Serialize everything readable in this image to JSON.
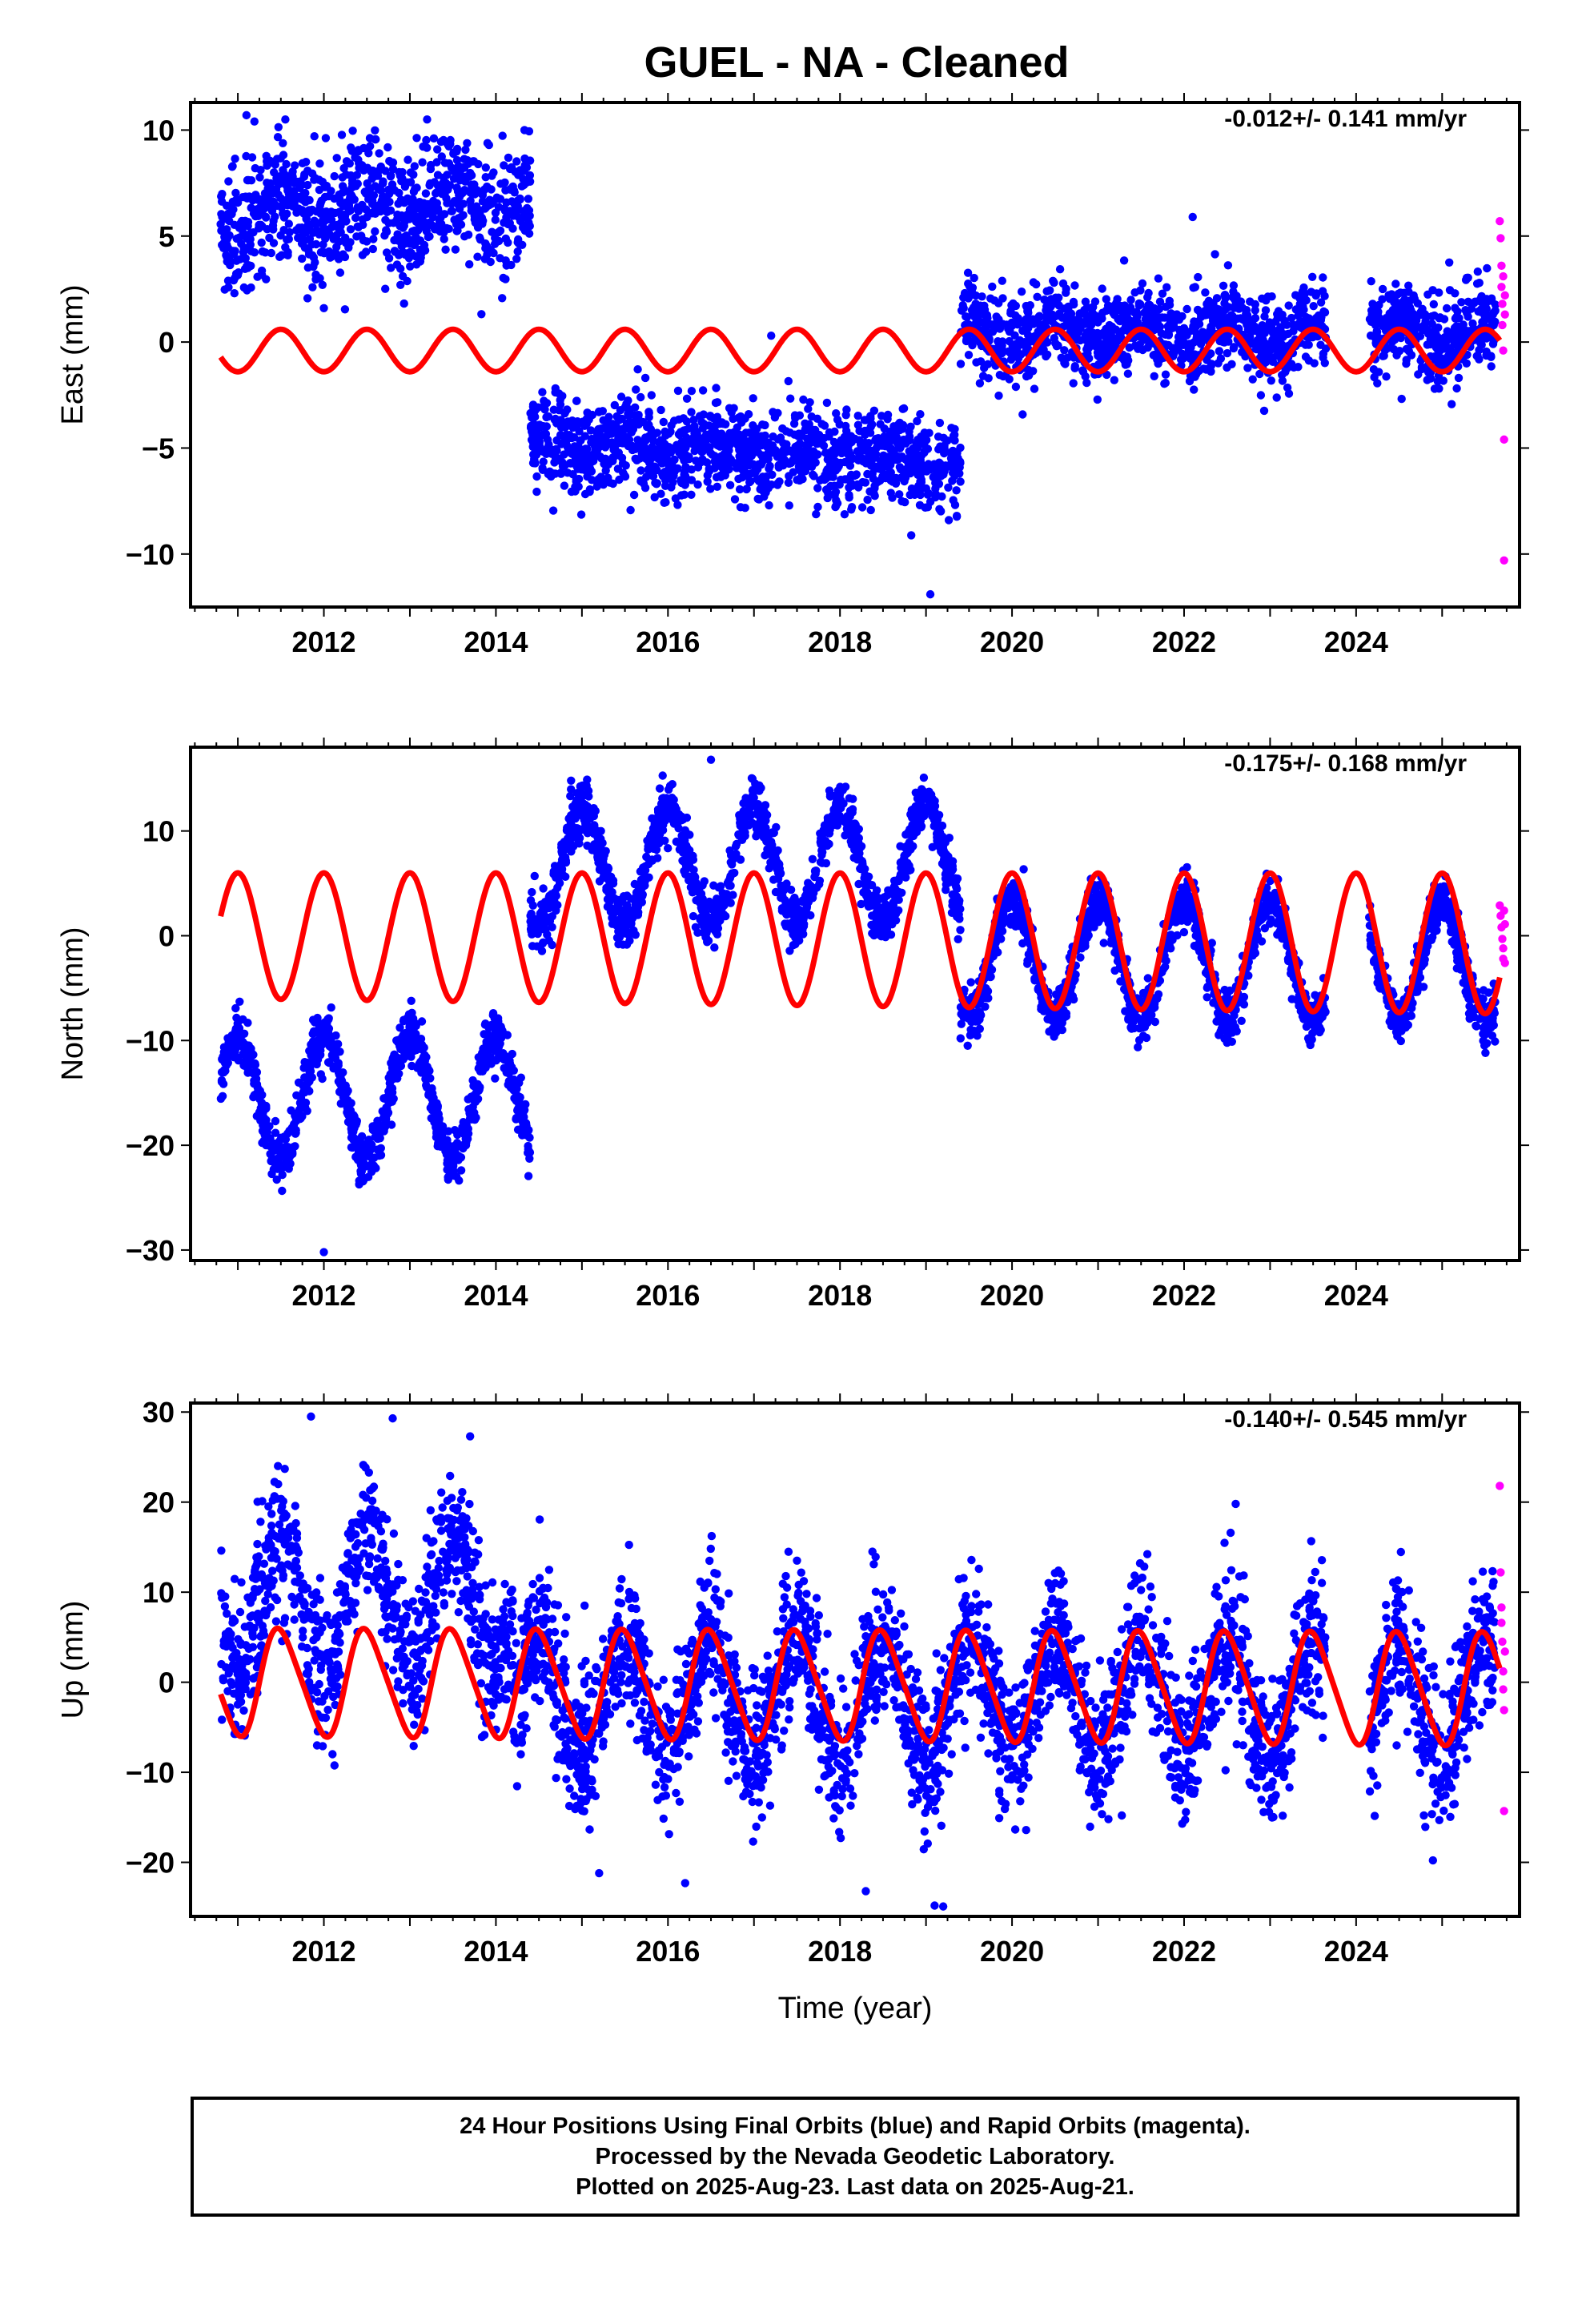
{
  "title": "GUEL  - NA - Cleaned",
  "colors": {
    "final": "#0000ff",
    "rapid": "#ff00ff",
    "model": "#ff0000",
    "axes": "#000000"
  },
  "x_axis_label": "Time (year)",
  "footer": {
    "line1": "24 Hour Positions Using Final Orbits (blue) and Rapid Orbits (magenta).",
    "line2": "Processed by the Nevada Geodetic Laboratory.",
    "line3": "Plotted on 2025-Aug-23. Last data on 2025-Aug-21."
  },
  "chart_data": [
    {
      "type": "scatter",
      "component": "East",
      "ylabel": "East (mm)",
      "rate": "-0.012+/- 0.141 mm/yr",
      "xlim": [
        2010.45,
        2025.9
      ],
      "ylim": [
        -12.5,
        11.3
      ],
      "x_ticks": [
        2012,
        2014,
        2016,
        2018,
        2020,
        2022,
        2024
      ],
      "y_ticks": [
        -10,
        -5,
        0,
        5,
        10
      ],
      "series": [
        {
          "role": "final orbits",
          "color": "blue",
          "segments": [
            {
              "x": [
                2010.8,
                2014.4
              ],
              "mean": 6.0,
              "scatter": 1.4,
              "annual_amp": 0.8,
              "trend": 0.2
            },
            {
              "x": [
                2014.4,
                2019.4
              ],
              "mean": -4.7,
              "scatter": 1.1,
              "annual_amp": 0.3,
              "trend": -0.2
            },
            {
              "x": [
                2019.4,
                2025.62
              ],
              "mean": 0.4,
              "scatter": 1.0,
              "annual_amp": 0.5,
              "trend": 0.0
            }
          ],
          "gaps": [
            [
              2023.65,
              2024.15
            ]
          ],
          "outliers": [
            [
              2011.1,
              10.7
            ],
            [
              2012.0,
              1.6
            ],
            [
              2019.05,
              -11.9
            ],
            [
              2022.1,
              5.9
            ],
            [
              2013.2,
              10.5
            ],
            [
              2017.2,
              0.3
            ]
          ]
        },
        {
          "role": "rapid orbits",
          "color": "magenta",
          "points": [
            [
              2025.67,
              5.7
            ],
            [
              2025.68,
              4.9
            ],
            [
              2025.69,
              3.6
            ],
            [
              2025.69,
              2.6
            ],
            [
              2025.7,
              1.8
            ],
            [
              2025.7,
              0.8
            ],
            [
              2025.71,
              -0.4
            ],
            [
              2025.71,
              3.1
            ],
            [
              2025.72,
              -4.6
            ],
            [
              2025.72,
              -10.3
            ],
            [
              2025.73,
              1.3
            ],
            [
              2025.73,
              2.2
            ]
          ]
        },
        {
          "role": "model",
          "color": "red",
          "kind": "line",
          "x": [
            2010.8,
            2025.67
          ],
          "offset": -0.4,
          "annual_amp": 1.0,
          "phase": 0.25,
          "semiannual_amp": 0.0
        }
      ]
    },
    {
      "type": "scatter",
      "component": "North",
      "ylabel": "North (mm)",
      "rate": "-0.175+/- 0.168 mm/yr",
      "xlim": [
        2010.45,
        2025.9
      ],
      "ylim": [
        -31,
        18
      ],
      "x_ticks": [
        2012,
        2014,
        2016,
        2018,
        2020,
        2022,
        2024
      ],
      "y_ticks": [
        -30,
        -20,
        -10,
        0,
        10
      ],
      "series": [
        {
          "role": "final orbits",
          "color": "blue",
          "segments": [
            {
              "x": [
                2010.8,
                2014.4
              ],
              "mean": -15.5,
              "scatter": 1.3,
              "annual_amp": 6.0,
              "trend": 0.0
            },
            {
              "x": [
                2014.4,
                2019.4
              ],
              "mean": 6.5,
              "scatter": 1.3,
              "annual_amp": 5.5,
              "trend": 0.1
            },
            {
              "x": [
                2019.4,
                2025.62
              ],
              "mean": -2.0,
              "scatter": 1.2,
              "annual_amp": 5.5,
              "trend": -0.1
            }
          ],
          "gaps": [
            [
              2023.65,
              2024.15
            ]
          ],
          "outliers": [
            [
              2012.0,
              -30.2
            ],
            [
              2016.5,
              16.8
            ],
            [
              2014.45,
              5.7
            ]
          ]
        },
        {
          "role": "rapid orbits",
          "color": "magenta",
          "points": [
            [
              2025.67,
              2.9
            ],
            [
              2025.68,
              1.9
            ],
            [
              2025.69,
              0.8
            ],
            [
              2025.7,
              -0.3
            ],
            [
              2025.71,
              -1.2
            ],
            [
              2025.71,
              -2.2
            ],
            [
              2025.72,
              2.4
            ],
            [
              2025.73,
              1.1
            ],
            [
              2025.73,
              -2.6
            ]
          ]
        },
        {
          "role": "model",
          "color": "red",
          "kind": "line",
          "x": [
            2010.8,
            2025.67
          ],
          "offset": 0.0,
          "annual_amp": 6.0,
          "phase": 0.75,
          "semiannual_amp": 0.0,
          "amp_growth": 0.12,
          "baseline_drift": -0.05
        }
      ]
    },
    {
      "type": "scatter",
      "component": "Up",
      "ylabel": "Up (mm)",
      "rate": "-0.140+/- 0.545 mm/yr",
      "xlim": [
        2010.45,
        2025.9
      ],
      "ylim": [
        -26,
        31
      ],
      "x_ticks": [
        2012,
        2014,
        2016,
        2018,
        2020,
        2022,
        2024
      ],
      "y_ticks": [
        -20,
        -10,
        0,
        10,
        20,
        30
      ],
      "series": [
        {
          "role": "final orbits",
          "color": "blue",
          "segments": [
            {
              "x": [
                2010.8,
                2014.2
              ],
              "mean": 9.0,
              "scatter": 4.0,
              "annual_amp": 7.0,
              "trend": 0.0
            },
            {
              "x": [
                2014.2,
                2025.62
              ],
              "mean": -1.5,
              "scatter": 4.0,
              "annual_amp": 6.5,
              "trend": 0.0
            }
          ],
          "gaps": [
            [
              2023.65,
              2024.15
            ]
          ],
          "outliers": [
            [
              2011.85,
              29.5
            ],
            [
              2012.8,
              29.3
            ],
            [
              2013.7,
              27.3
            ],
            [
              2019.1,
              -24.8
            ],
            [
              2019.2,
              -24.9
            ],
            [
              2015.2,
              -21.2
            ],
            [
              2016.2,
              -22.3
            ],
            [
              2018.3,
              -23.2
            ],
            [
              2017.5,
              13.5
            ],
            [
              2022.6,
              19.8
            ]
          ]
        },
        {
          "role": "rapid orbits",
          "color": "magenta",
          "points": [
            [
              2025.67,
              21.8
            ],
            [
              2025.68,
              12.2
            ],
            [
              2025.69,
              8.3
            ],
            [
              2025.69,
              6.6
            ],
            [
              2025.7,
              4.5
            ],
            [
              2025.71,
              1.2
            ],
            [
              2025.71,
              -0.8
            ],
            [
              2025.72,
              -3.1
            ],
            [
              2025.72,
              -14.3
            ],
            [
              2025.73,
              3.4
            ]
          ]
        },
        {
          "role": "model",
          "color": "red",
          "kind": "line",
          "x": [
            2010.8,
            2025.67
          ],
          "offset": 0.0,
          "annual_amp": 5.8,
          "phase": 0.25,
          "semiannual_amp": 0.8,
          "amp_growth": 0.06,
          "baseline_drift": -0.05
        }
      ]
    }
  ]
}
